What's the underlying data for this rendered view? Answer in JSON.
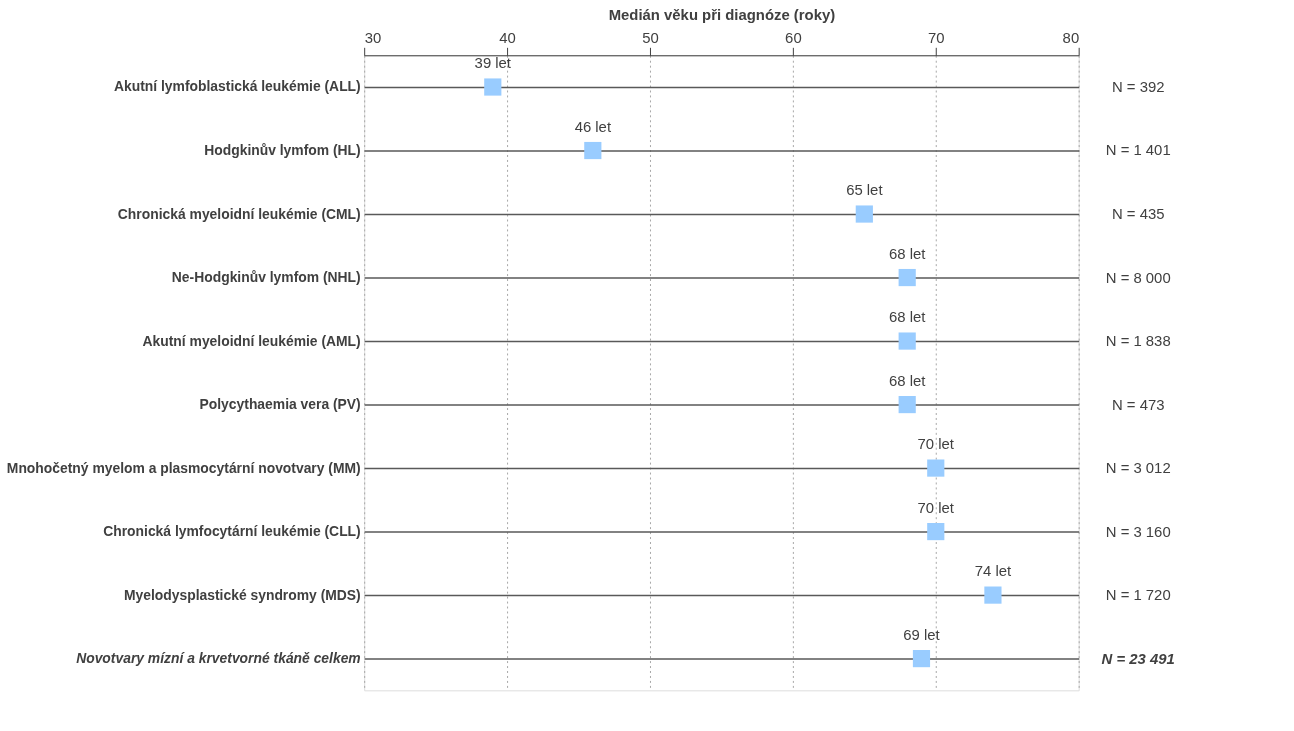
{
  "chart_data": {
    "type": "scatter",
    "orientation": "horizontal",
    "xlabel": "Medián věku při diagnóze (roky)",
    "categories": [
      "Akutní lymfoblastická leukémie (ALL)",
      "Hodgkinův lymfom (HL)",
      "Chronická myeloidní leukémie (CML)",
      "Ne-Hodgkinův lymfom (NHL)",
      "Akutní myeloidní leukémie (AML)",
      "Polycythaemia vera (PV)",
      "Mnohočetný myelom a plasmocytární novotvary (MM)",
      "Chronická lymfocytární leukémie (CLL)",
      "Myelodysplastické syndromy (MDS)",
      "Novotvary mízní a krvetvorné tkáně celkem"
    ],
    "values": [
      39,
      46,
      65,
      68,
      68,
      68,
      70,
      70,
      74,
      69
    ],
    "value_labels": [
      "39 let",
      "46 let",
      "65 let",
      "68 let",
      "68 let",
      "68 let",
      "70 let",
      "70 let",
      "74 let",
      "69 let"
    ],
    "annotations": [
      "N = 392",
      "N = 1 401",
      "N = 435",
      "N = 8 000",
      "N = 1 838",
      "N = 473",
      "N = 3 012",
      "N = 3 160",
      "N = 1 720",
      "N = 23 491"
    ],
    "color": "#99ccff",
    "marker": "square",
    "xlim": [
      30,
      80
    ],
    "xticks": [
      30,
      40,
      50,
      60,
      70,
      80
    ],
    "grid": true
  }
}
